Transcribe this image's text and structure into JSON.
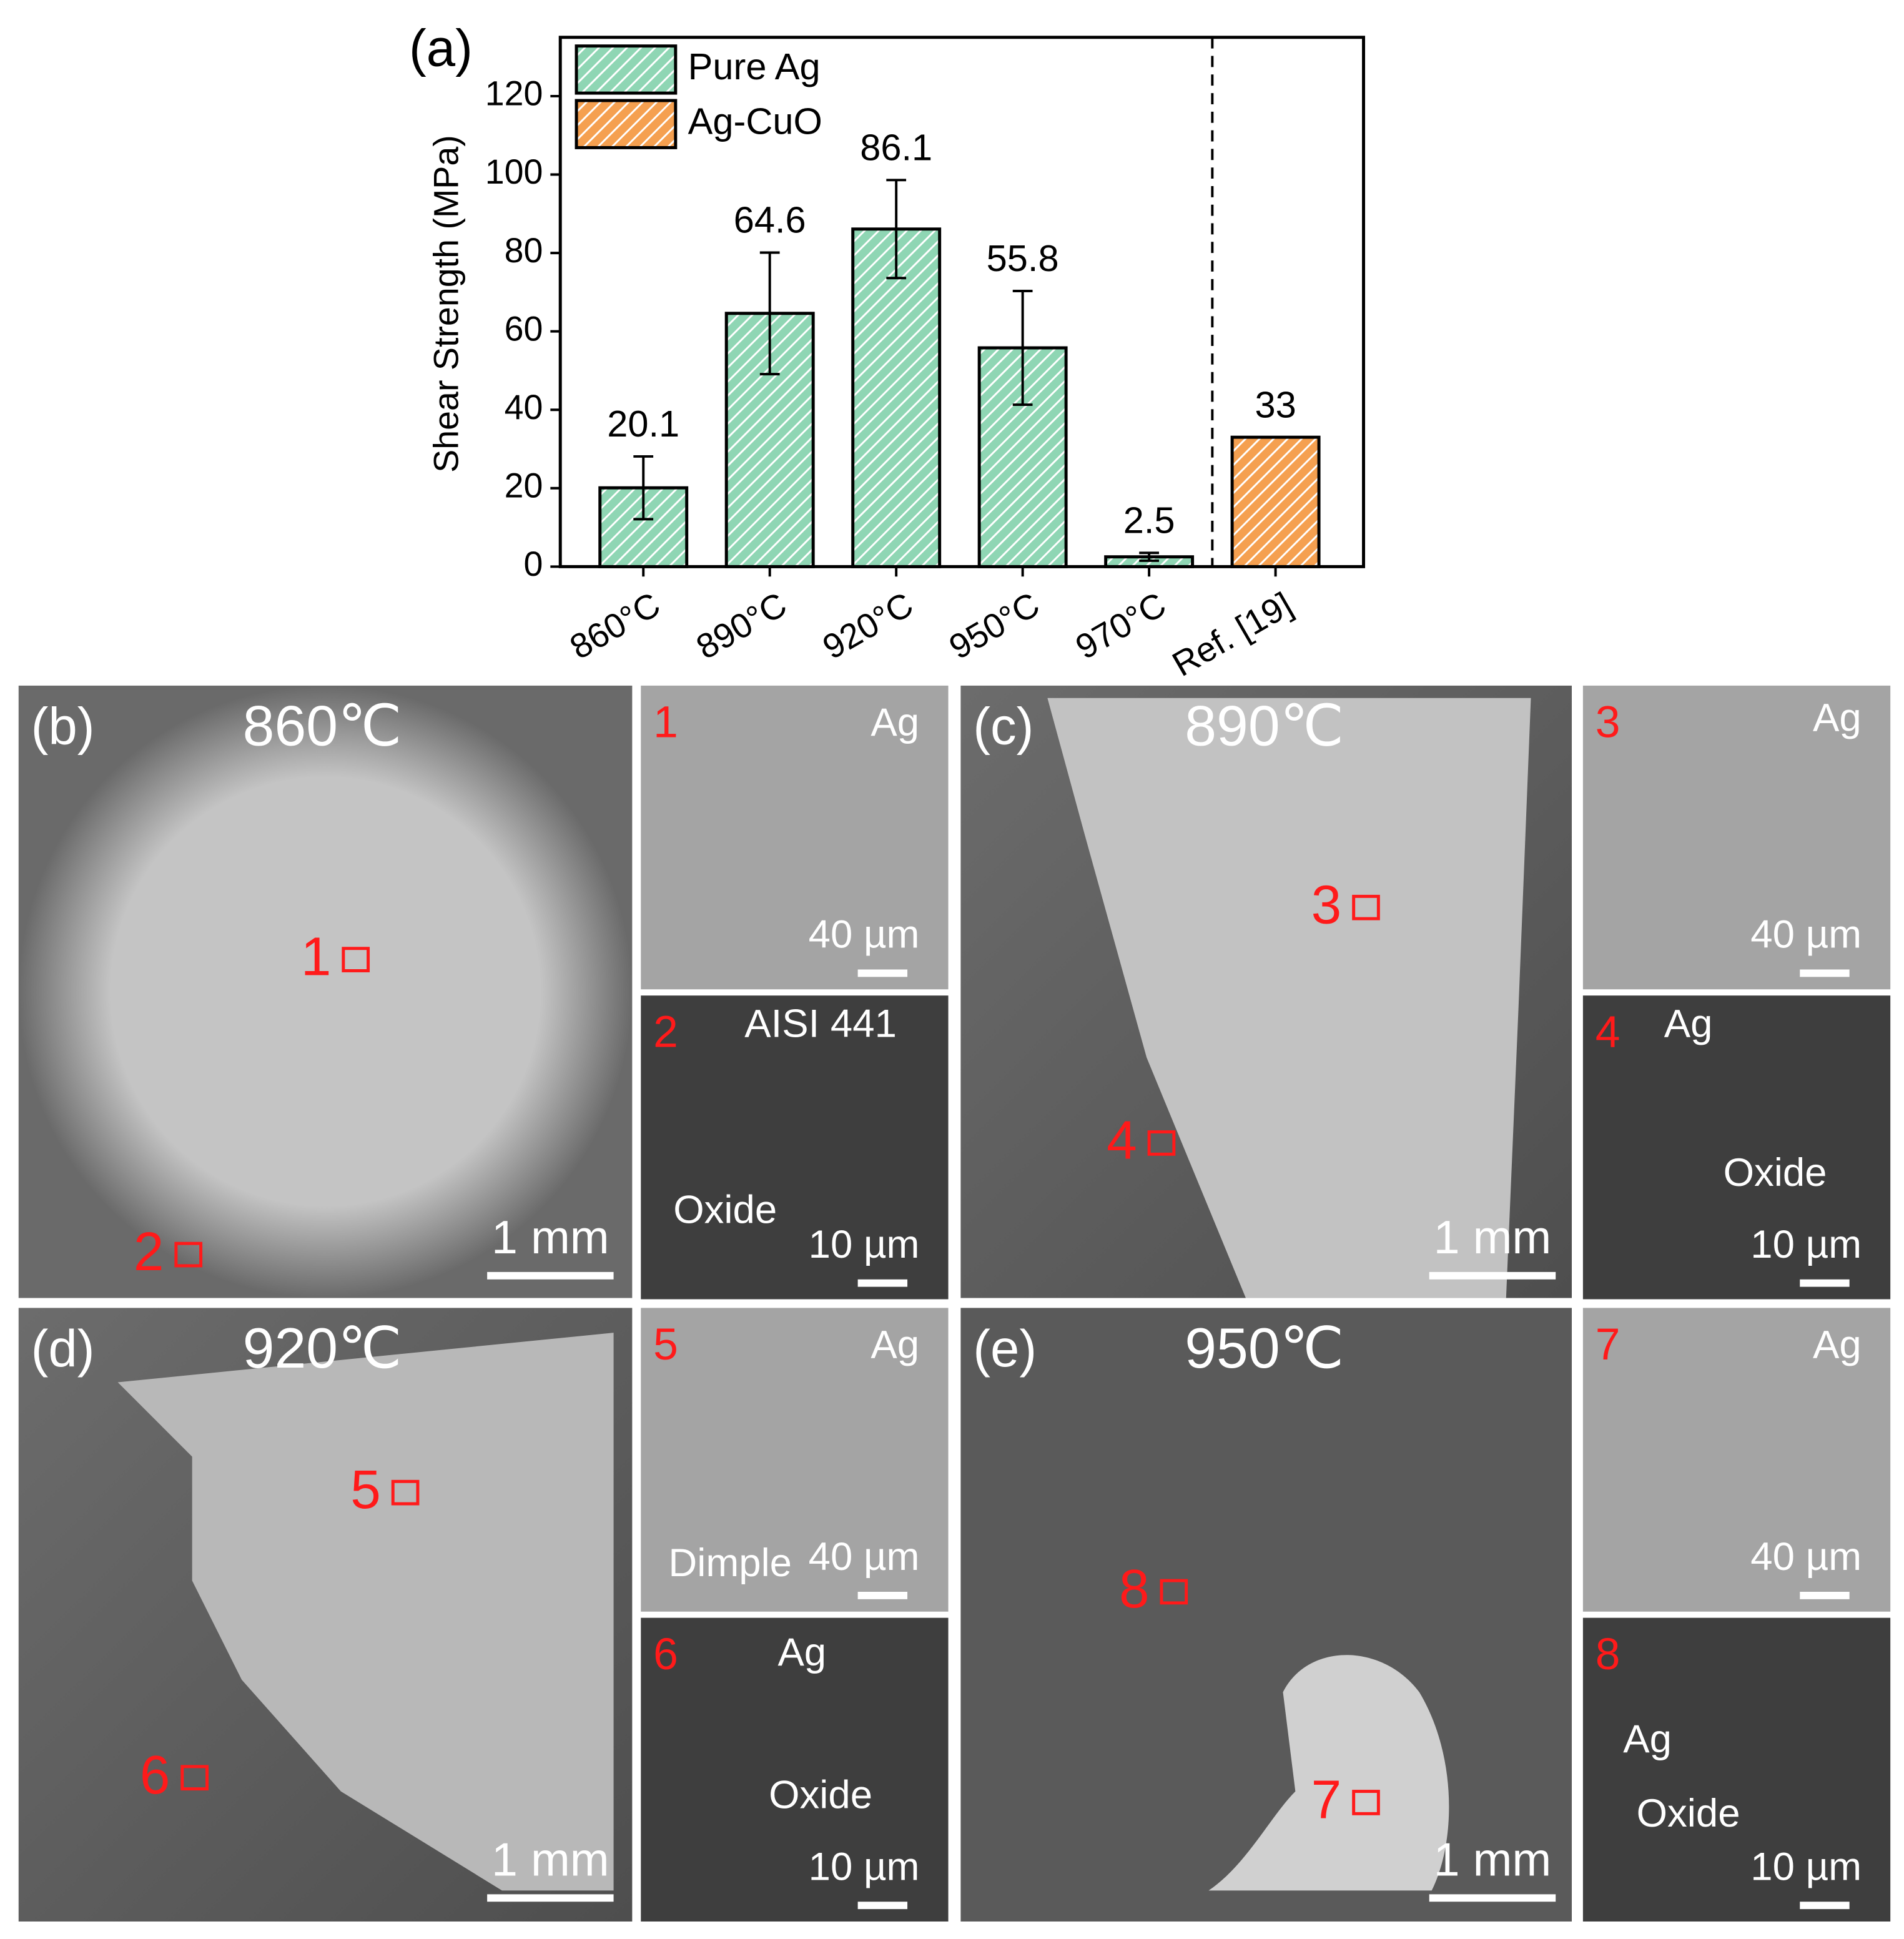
{
  "chart_data": {
    "type": "bar",
    "panel_label": "(a)",
    "y_label": "Shear Strength (MPa)",
    "categories": [
      "860°C",
      "890°C",
      "920°C",
      "950°C",
      "970°C",
      "Ref. [19]"
    ],
    "series": [
      {
        "name": "Pure Ag",
        "color": "#8fd6b4",
        "values": [
          20.1,
          64.6,
          86.1,
          55.8,
          2.5,
          null
        ],
        "errors": [
          8,
          15.5,
          12.5,
          14.5,
          1,
          null
        ]
      },
      {
        "name": "Ag-CuO",
        "color": "#f5a050",
        "values": [
          null,
          null,
          null,
          null,
          null,
          33
        ],
        "errors": [
          null,
          null,
          null,
          null,
          null,
          null
        ]
      }
    ],
    "ylim": [
      0,
      135
    ],
    "yticks": [
      0,
      20,
      40,
      60,
      80,
      100,
      120
    ],
    "legend": "upper-left",
    "hatch": true
  },
  "panels": [
    {
      "label": "(b)",
      "title": "860℃",
      "markers": [
        "1",
        "2"
      ],
      "scale": "1 mm",
      "insets": [
        {
          "number": "1",
          "tags": [
            "Ag"
          ],
          "scale": "40 µm"
        },
        {
          "number": "2",
          "tags": [
            "AISI 441",
            "Oxide"
          ],
          "scale": "10 µm"
        }
      ]
    },
    {
      "label": "(c)",
      "title": "890℃",
      "markers": [
        "3",
        "4"
      ],
      "scale": "1 mm",
      "insets": [
        {
          "number": "3",
          "tags": [
            "Ag"
          ],
          "scale": "40 µm"
        },
        {
          "number": "4",
          "tags": [
            "Ag",
            "Oxide"
          ],
          "scale": "10 µm"
        }
      ]
    },
    {
      "label": "(d)",
      "title": "920℃",
      "markers": [
        "5",
        "6"
      ],
      "scale": "1 mm",
      "insets": [
        {
          "number": "5",
          "tags": [
            "Ag",
            "Dimple"
          ],
          "scale": "40 µm"
        },
        {
          "number": "6",
          "tags": [
            "Ag",
            "Oxide"
          ],
          "scale": "10 µm"
        }
      ]
    },
    {
      "label": "(e)",
      "title": "950℃",
      "markers": [
        "7",
        "8"
      ],
      "scale": "1 mm",
      "insets": [
        {
          "number": "7",
          "tags": [
            "Ag"
          ],
          "scale": "40 µm"
        },
        {
          "number": "8",
          "tags": [
            "Ag",
            "Oxide"
          ],
          "scale": "10 µm"
        }
      ]
    }
  ]
}
